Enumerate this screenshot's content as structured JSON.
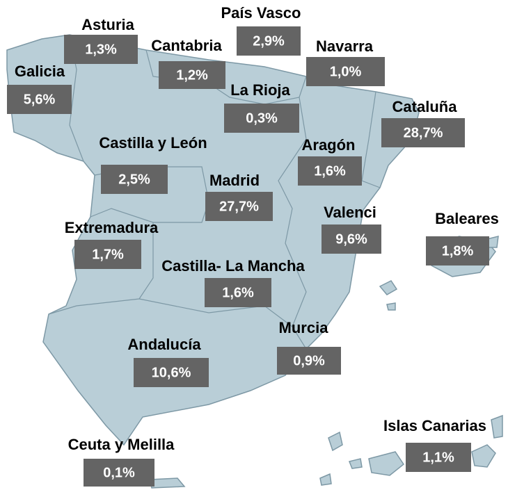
{
  "regions": [
    {
      "name": "Asturia",
      "value": "1,3%"
    },
    {
      "name": "País Vasco",
      "value": "2,9%"
    },
    {
      "name": "Cantabria",
      "value": "1,2%"
    },
    {
      "name": "Navarra",
      "value": "1,0%"
    },
    {
      "name": "Galicia",
      "value": "5,6%"
    },
    {
      "name": "La Rioja",
      "value": "0,3%"
    },
    {
      "name": "Cataluña",
      "value": "28,7%"
    },
    {
      "name": "Castilla y León",
      "value": "2,5%"
    },
    {
      "name": "Aragón",
      "value": "1,6%"
    },
    {
      "name": "Madrid",
      "value": "27,7%"
    },
    {
      "name": "Valenci",
      "value": "9,6%"
    },
    {
      "name": "Baleares",
      "value": "1,8%"
    },
    {
      "name": "Extremadura",
      "value": "1,7%"
    },
    {
      "name": "Castilla- La Mancha",
      "value": "1,6%"
    },
    {
      "name": "Murcia",
      "value": "0,9%"
    },
    {
      "name": "Andalucía",
      "value": "10,6%"
    },
    {
      "name": "Islas Canarias",
      "value": "1,1%"
    },
    {
      "name": "Ceuta y Melilla",
      "value": "0,1%"
    }
  ]
}
